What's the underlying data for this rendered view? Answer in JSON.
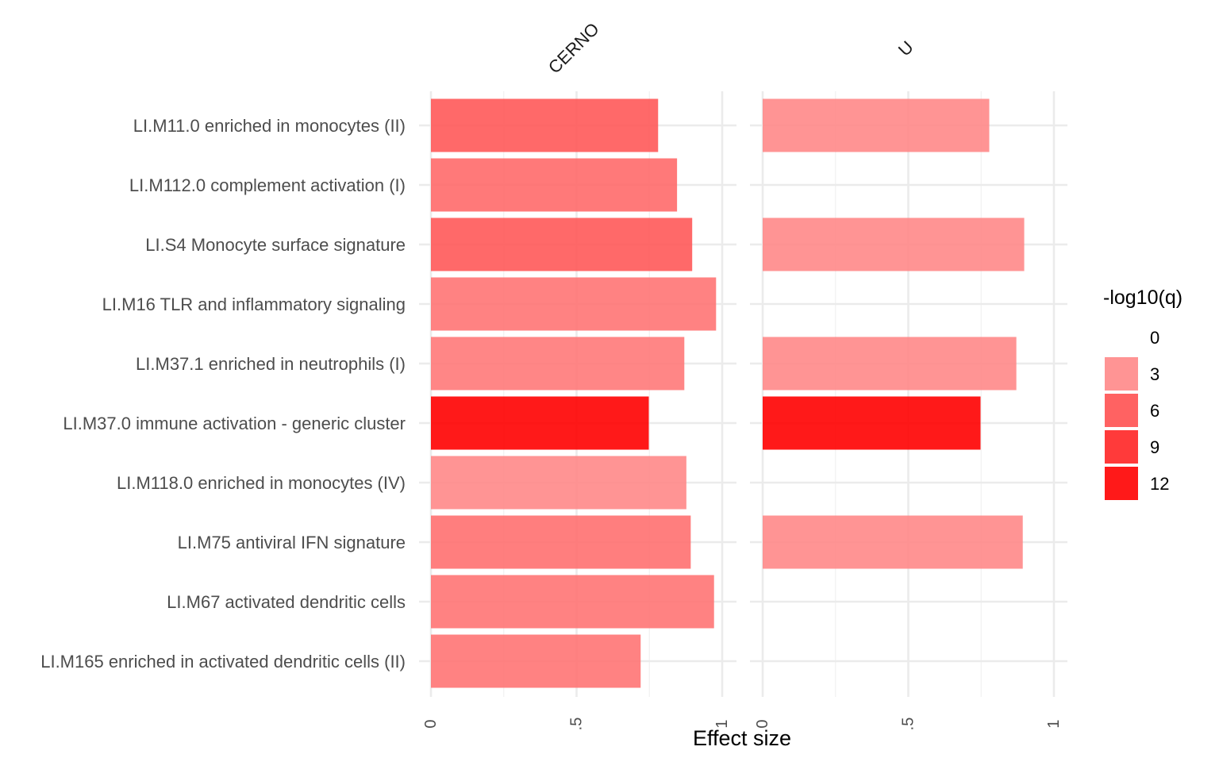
{
  "chart_data": {
    "type": "bar",
    "orientation": "horizontal",
    "xlabel": "Effect size",
    "ylabel": "",
    "title": "",
    "xlim": [
      0,
      1
    ],
    "x_ticks": [
      {
        "value": 0,
        "label": "0"
      },
      {
        "value": 0.5,
        "label": ".5"
      },
      {
        "value": 1,
        "label": "1"
      }
    ],
    "grid": true,
    "legend_position": "right",
    "categories": [
      "LI.M11.0 enriched in monocytes (II)",
      "LI.M112.0 complement activation (I)",
      "LI.S4 Monocyte surface signature",
      "LI.M16 TLR and inflammatory signaling",
      "LI.M37.1 enriched in neutrophils (I)",
      "LI.M37.0 immune activation - generic cluster",
      "LI.M118.0 enriched in monocytes (IV)",
      "LI.M75 antiviral IFN signature",
      "LI.M67 activated dendritic cells",
      "LI.M165 enriched in activated dendritic cells (II)"
    ],
    "panels": [
      {
        "name": "CERNO",
        "values": [
          0.78,
          0.845,
          0.897,
          0.979,
          0.87,
          0.748,
          0.877,
          0.892,
          0.972,
          0.72
        ],
        "neglog10q": [
          5.5,
          4.5,
          5.5,
          4.0,
          3.7,
          12.0,
          3.0,
          4.2,
          4.0,
          4.0
        ]
      },
      {
        "name": "U",
        "values": [
          0.778,
          null,
          0.898,
          null,
          0.871,
          0.748,
          null,
          0.893,
          null,
          null
        ],
        "neglog10q": [
          3.0,
          null,
          3.0,
          null,
          3.0,
          12.0,
          null,
          3.0,
          null,
          null
        ]
      }
    ],
    "legend": {
      "title": "-log10(q)",
      "entries": [
        {
          "label": "0",
          "value": 0
        },
        {
          "label": "3",
          "value": 3
        },
        {
          "label": "6",
          "value": 6
        },
        {
          "label": "9",
          "value": 9
        },
        {
          "label": "12",
          "value": 12
        }
      ],
      "color_low": "#ffffff",
      "color_high": "#ff0000",
      "value_max": 12
    }
  }
}
